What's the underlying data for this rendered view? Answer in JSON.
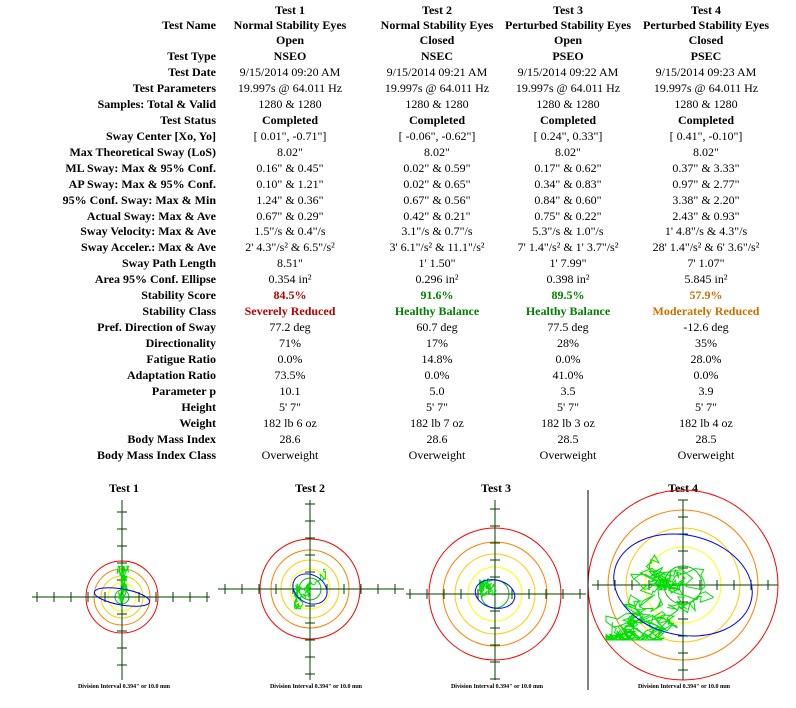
{
  "tests": [
    {
      "header": "Test 1",
      "name_l1": "Normal Stability Eyes",
      "name_l2": "Open",
      "type": "NSEO",
      "date": "9/15/2014 09:20 AM",
      "params": "19.997s @ 64.011 Hz",
      "samples": "1280 & 1280",
      "status": "Completed",
      "sway_center": "[   0.01\",   -0.71\"]",
      "los": "8.02\"",
      "ml": "0.16\"  &    0.45\"",
      "ap": "0.10\"  &    1.21\"",
      "conf": "1.24\"  &    0.36\"",
      "actual": "0.67\"  &    0.29\"",
      "vel": "1.5\"/s &    0.4\"/s",
      "acc": "2'  4.3\"/s² &    6.5\"/s²",
      "path": "8.51\"",
      "area": "0.354 in²",
      "score": "84.5%",
      "class": "Severely Reduced",
      "dir_sway": "77.2 deg",
      "directionality": "71%",
      "fatigue": "0.0%",
      "adaptation": "73.5%",
      "param_p": "10.1",
      "height": "5'  7\"",
      "weight": "182 lb 6 oz",
      "bmi": "28.6",
      "bmi_class": "Overweight"
    },
    {
      "header": "Test 2",
      "name_l1": "Normal Stability Eyes",
      "name_l2": "Closed",
      "type": "NSEC",
      "date": "9/15/2014 09:21 AM",
      "params": "19.997s @ 64.011 Hz",
      "samples": "1280 & 1280",
      "status": "Completed",
      "sway_center": "[  -0.06\",   -0.62\"]",
      "los": "8.02\"",
      "ml": "0.02\"  &    0.59\"",
      "ap": "0.02\"  &    0.65\"",
      "conf": "0.67\"  &    0.56\"",
      "actual": "0.42\"  &    0.21\"",
      "vel": "3.1\"/s &    0.7\"/s",
      "acc": "3'  6.1\"/s² &   11.1\"/s²",
      "path": "1'  1.50\"",
      "area": "0.296 in²",
      "score": "91.6%",
      "class": "Healthy Balance",
      "dir_sway": "60.7 deg",
      "directionality": "17%",
      "fatigue": "14.8%",
      "adaptation": "0.0%",
      "param_p": "5.0",
      "height": "5'  7\"",
      "weight": "182 lb 7 oz",
      "bmi": "28.6",
      "bmi_class": "Overweight"
    },
    {
      "header": "Test 3",
      "name_l1": "Perturbed Stability Eyes",
      "name_l2": "Open",
      "type": "PSEO",
      "date": "9/15/2014 09:22 AM",
      "params": "19.997s @ 64.011 Hz",
      "samples": "1280 & 1280",
      "status": "Completed",
      "sway_center": "[   0.24\",    0.33\"]",
      "los": "8.02\"",
      "ml": "0.17\"  &    0.62\"",
      "ap": "0.34\"  &    0.83\"",
      "conf": "0.84\"  &    0.60\"",
      "actual": "0.75\"  &    0.22\"",
      "vel": "5.3\"/s &    1.0\"/s",
      "acc": "7'  1.4\"/s² & 1'  3.7\"/s²",
      "path": "1'  7.99\"",
      "area": "0.398 in²",
      "score": "89.5%",
      "class": "Healthy Balance",
      "dir_sway": "77.5 deg",
      "directionality": "28%",
      "fatigue": "0.0%",
      "adaptation": "41.0%",
      "param_p": "3.5",
      "height": "5'  7\"",
      "weight": "182 lb 3 oz",
      "bmi": "28.5",
      "bmi_class": "Overweight"
    },
    {
      "header": "Test 4",
      "name_l1": "Perturbed Stability Eyes",
      "name_l2": "Closed",
      "type": "PSEC",
      "date": "9/15/2014 09:23 AM",
      "params": "19.997s @ 64.011 Hz",
      "samples": "1280 & 1280",
      "status": "Completed",
      "sway_center": "[   0.41\",   -0.10\"]",
      "los": "8.02\"",
      "ml": "0.37\"  &    3.33\"",
      "ap": "0.97\"  &    2.77\"",
      "conf": "3.38\"  &    2.20\"",
      "actual": "2.43\"  &    0.93\"",
      "vel": "1'  4.8\"/s &    4.3\"/s",
      "acc": "28'  1.4\"/s² & 6'  3.6\"/s²",
      "path": "7'  1.07\"",
      "area": "5.845 in²",
      "score": "57.9%",
      "class": "Moderately Reduced",
      "dir_sway": "-12.6 deg",
      "directionality": "35%",
      "fatigue": "28.0%",
      "adaptation": "0.0%",
      "param_p": "3.9",
      "height": "5'  7\"",
      "weight": "182 lb 4 oz",
      "bmi": "28.5",
      "bmi_class": "Overweight"
    }
  ],
  "labels": {
    "name": "Test Name",
    "type": "Test Type",
    "date": "Test Date",
    "params": "Test Parameters",
    "samples": "Samples: Total & Valid",
    "status": "Test Status",
    "sway_center": "Sway Center [Xo, Yo]",
    "los": "Max Theoretical Sway (LoS)",
    "ml": "ML Sway: Max & 95% Conf.",
    "ap": "AP Sway: Max & 95% Conf.",
    "conf": "95% Conf. Sway: Max & Min",
    "actual": "Actual Sway: Max & Ave",
    "vel": "Sway Velocity: Max & Ave",
    "acc": "Sway Acceler.: Max & Ave",
    "path": "Sway Path Length",
    "area": "Area 95% Conf. Ellipse",
    "score": "Stability Score",
    "class": "Stability Class",
    "dir_sway": "Pref. Direction of Sway",
    "directionality": "Directionality",
    "fatigue": "Fatigue Ratio",
    "adaptation": "Adaptation Ratio",
    "param_p": "Parameter p",
    "height": "Height",
    "weight": "Weight",
    "bmi": "Body Mass Index",
    "bmi_class": "Body Mass Index Class"
  },
  "plots": [
    {
      "title": "Test 1",
      "footer": "Division Interval 0.394\" or 10.0 mm"
    },
    {
      "title": "Test 2",
      "footer": "Division Interval 0.394\" or 10.0 mm"
    },
    {
      "title": "Test 3",
      "footer": "Division Interval 0.394\" or 10.0 mm"
    },
    {
      "title": "Test 4",
      "footer": "Division Interval 0.394\" or 10.0 mm"
    }
  ],
  "colors": {
    "severe": "#c00000",
    "healthy": "#008000",
    "moderate": "#d07000",
    "trace": "#00e000",
    "ellipse": "#0000ff",
    "axis": "#004000"
  }
}
